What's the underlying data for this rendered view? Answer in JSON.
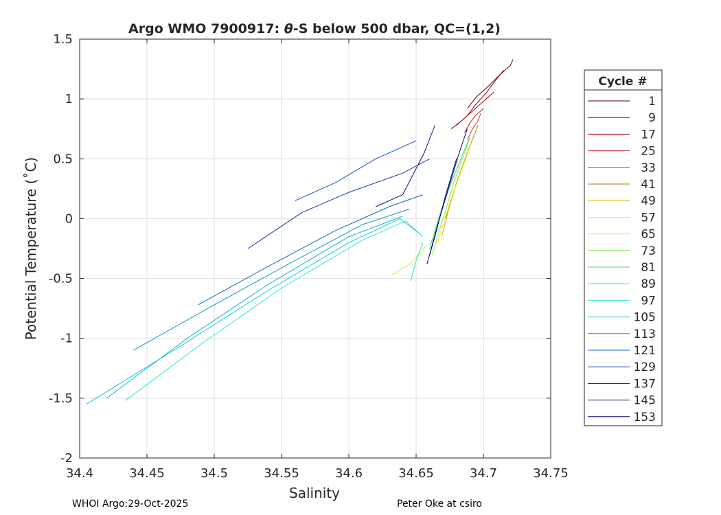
{
  "chart_data": {
    "type": "line",
    "title_prefix": "Argo WMO 7900917: ",
    "title_theta": "θ",
    "title_suffix": "-S below 500 dbar,  QC=(1,2)",
    "xlabel": "Salinity",
    "ylabel": "Potential Temperature (˚C)",
    "xlim": [
      34.4,
      34.75
    ],
    "ylim": [
      -2,
      1.5
    ],
    "xticks": [
      34.4,
      34.45,
      34.5,
      34.55,
      34.6,
      34.65,
      34.7,
      34.75
    ],
    "xtick_labels": [
      "34.4",
      "34.45",
      "34.5",
      "34.55",
      "34.6",
      "34.65",
      "34.7",
      "34.75"
    ],
    "yticks": [
      -2,
      -1.5,
      -1,
      -0.5,
      0,
      0.5,
      1,
      1.5
    ],
    "ytick_labels": [
      "-2",
      "-1.5",
      "-1",
      "-0.5",
      "0",
      "0.5",
      "1",
      "1.5"
    ],
    "grid": true,
    "legend": {
      "title": "Cycle #",
      "placement": "right-outside",
      "entries": [
        {
          "label": "1",
          "color": "#5a0000"
        },
        {
          "label": "9",
          "color": "#8c0000"
        },
        {
          "label": "17",
          "color": "#b00000"
        },
        {
          "label": "25",
          "color": "#c81414"
        },
        {
          "label": "33",
          "color": "#d23232"
        },
        {
          "label": "41",
          "color": "#b4780a"
        },
        {
          "label": "49",
          "color": "#d2b400"
        },
        {
          "label": "57",
          "color": "#f0f000"
        },
        {
          "label": "65",
          "color": "#c8f03c"
        },
        {
          "label": "73",
          "color": "#82e650"
        },
        {
          "label": "81",
          "color": "#3cdc64"
        },
        {
          "label": "89",
          "color": "#28e6a0"
        },
        {
          "label": "97",
          "color": "#28e6dc"
        },
        {
          "label": "105",
          "color": "#14c8dc"
        },
        {
          "label": "113",
          "color": "#1496c8"
        },
        {
          "label": "121",
          "color": "#1464c8"
        },
        {
          "label": "129",
          "color": "#1432b4"
        },
        {
          "label": "137",
          "color": "#0a0a8c"
        },
        {
          "label": "145",
          "color": "#0a0a64"
        },
        {
          "label": "153",
          "color": "#000080"
        }
      ]
    },
    "series": [
      {
        "color": "#5a0000",
        "points": [
          [
            34.688,
            0.92
          ],
          [
            34.695,
            1.02
          ],
          [
            34.703,
            1.1
          ],
          [
            34.712,
            1.2
          ],
          [
            34.72,
            1.28
          ],
          [
            34.722,
            1.33
          ]
        ]
      },
      {
        "color": "#8c0000",
        "points": [
          [
            34.68,
            0.78
          ],
          [
            34.688,
            0.86
          ],
          [
            34.694,
            0.95
          ],
          [
            34.702,
            1.05
          ],
          [
            34.708,
            1.14
          ],
          [
            34.715,
            1.24
          ]
        ]
      },
      {
        "color": "#b00000",
        "points": [
          [
            34.676,
            0.75
          ],
          [
            34.684,
            0.82
          ],
          [
            34.692,
            0.9
          ],
          [
            34.7,
            0.98
          ],
          [
            34.708,
            1.06
          ]
        ]
      },
      {
        "color": "#c81414",
        "points": [
          [
            34.686,
            0.72
          ],
          [
            34.69,
            0.8
          ],
          [
            34.694,
            0.86
          ],
          [
            34.7,
            0.92
          ]
        ]
      },
      {
        "color": "#d23232",
        "points": [
          [
            34.688,
            0.66
          ],
          [
            34.692,
            0.75
          ],
          [
            34.696,
            0.82
          ],
          [
            34.698,
            0.88
          ]
        ]
      },
      {
        "color": "#b4780a",
        "points": [
          [
            34.672,
            0.0
          ],
          [
            34.68,
            0.3
          ],
          [
            34.688,
            0.55
          ],
          [
            34.696,
            0.78
          ]
        ]
      },
      {
        "color": "#d2b400",
        "points": [
          [
            34.669,
            -0.15
          ],
          [
            34.677,
            0.2
          ],
          [
            34.685,
            0.45
          ],
          [
            34.693,
            0.7
          ]
        ]
      },
      {
        "color": "#f0f000",
        "points": [
          [
            34.666,
            -0.2
          ],
          [
            34.674,
            0.1
          ],
          [
            34.682,
            0.35
          ],
          [
            34.69,
            0.6
          ]
        ]
      },
      {
        "color": "#c8f03c",
        "points": [
          [
            34.632,
            -0.47
          ],
          [
            34.645,
            -0.38
          ],
          [
            34.652,
            -0.3
          ],
          [
            34.658,
            -0.22
          ]
        ]
      },
      {
        "color": "#82e650",
        "points": [
          [
            34.662,
            -0.3
          ],
          [
            34.67,
            0.0
          ],
          [
            34.678,
            0.3
          ],
          [
            34.686,
            0.55
          ],
          [
            34.69,
            0.68
          ]
        ]
      },
      {
        "color": "#3cdc64",
        "points": [
          [
            34.66,
            -0.25
          ],
          [
            34.668,
            0.05
          ],
          [
            34.676,
            0.3
          ],
          [
            34.684,
            0.52
          ],
          [
            34.69,
            0.68
          ]
        ]
      },
      {
        "color": "#28e6a0",
        "points": [
          [
            34.646,
            -0.52
          ],
          [
            34.65,
            -0.35
          ],
          [
            34.655,
            -0.2
          ]
        ]
      },
      {
        "color": "#28e6dc",
        "points": [
          [
            34.434,
            -1.52
          ],
          [
            34.49,
            -1.05
          ],
          [
            34.55,
            -0.58
          ],
          [
            34.61,
            -0.18
          ],
          [
            34.642,
            -0.02
          ],
          [
            34.655,
            -0.15
          ]
        ]
      },
      {
        "color": "#14c8dc",
        "points": [
          [
            34.405,
            -1.55
          ],
          [
            34.47,
            -1.1
          ],
          [
            34.54,
            -0.6
          ],
          [
            34.6,
            -0.2
          ],
          [
            34.638,
            0.0
          ],
          [
            34.652,
            -0.12
          ]
        ]
      },
      {
        "color": "#14b4d2",
        "points": [
          [
            34.42,
            -1.5
          ],
          [
            34.48,
            -1.0
          ],
          [
            34.54,
            -0.55
          ],
          [
            34.6,
            -0.15
          ],
          [
            34.64,
            0.02
          ]
        ]
      },
      {
        "color": "#1496c8",
        "points": [
          [
            34.44,
            -1.1
          ],
          [
            34.5,
            -0.72
          ],
          [
            34.56,
            -0.35
          ],
          [
            34.61,
            -0.05
          ],
          [
            34.645,
            0.08
          ]
        ]
      },
      {
        "color": "#1464c8",
        "points": [
          [
            34.488,
            -0.72
          ],
          [
            34.54,
            -0.4
          ],
          [
            34.59,
            -0.1
          ],
          [
            34.63,
            0.1
          ],
          [
            34.655,
            0.2
          ]
        ]
      },
      {
        "color": "#1432b4",
        "points": [
          [
            34.525,
            -0.25
          ],
          [
            34.565,
            0.05
          ],
          [
            34.6,
            0.22
          ],
          [
            34.64,
            0.38
          ],
          [
            34.66,
            0.5
          ]
        ]
      },
      {
        "color": "#1450c8",
        "points": [
          [
            34.56,
            0.15
          ],
          [
            34.59,
            0.3
          ],
          [
            34.62,
            0.5
          ],
          [
            34.65,
            0.65
          ]
        ]
      },
      {
        "color": "#0a0a8c",
        "points": [
          [
            34.62,
            0.1
          ],
          [
            34.64,
            0.2
          ],
          [
            34.656,
            0.55
          ],
          [
            34.664,
            0.78
          ]
        ]
      },
      {
        "color": "#0a0a64",
        "points": [
          [
            34.658,
            -0.38
          ],
          [
            34.664,
            -0.15
          ],
          [
            34.672,
            0.2
          ],
          [
            34.68,
            0.5
          ]
        ]
      },
      {
        "color": "#000080",
        "points": [
          [
            34.66,
            -0.3
          ],
          [
            34.666,
            -0.05
          ],
          [
            34.674,
            0.25
          ],
          [
            34.682,
            0.55
          ],
          [
            34.688,
            0.75
          ]
        ]
      }
    ]
  },
  "footer": {
    "left": "WHOI Argo:29-Oct-2025",
    "right": "Peter Oke at csiro"
  }
}
